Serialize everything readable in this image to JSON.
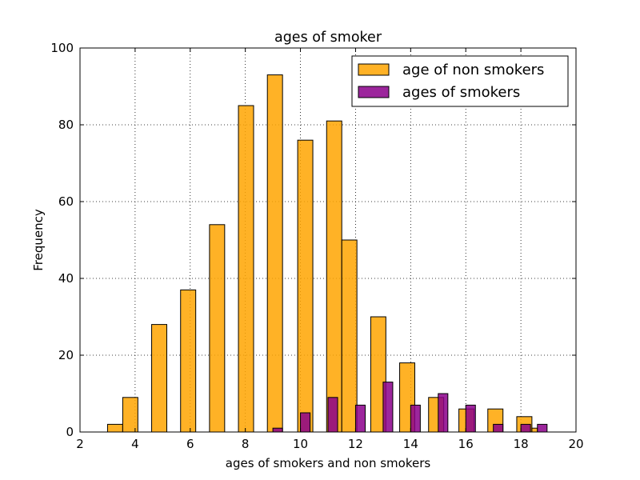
{
  "chart_data": {
    "type": "bar",
    "title": "ages of smoker",
    "xlabel": "ages of smokers and non smokers",
    "ylabel": "Frequency",
    "xlim": [
      2,
      20
    ],
    "ylim": [
      0,
      100
    ],
    "xticks": [
      2,
      4,
      6,
      8,
      10,
      12,
      14,
      16,
      18,
      20
    ],
    "yticks": [
      0,
      20,
      40,
      60,
      80,
      100
    ],
    "grid": true,
    "legend_position": "top-right",
    "series": [
      {
        "name": "age of non smokers",
        "color": "#ffa500",
        "bars": [
          {
            "x0": 3.0,
            "x1": 3.55,
            "value": 2
          },
          {
            "x0": 3.55,
            "x1": 4.1,
            "value": 9
          },
          {
            "x0": 4.6,
            "x1": 5.15,
            "value": 28
          },
          {
            "x0": 5.65,
            "x1": 6.2,
            "value": 37
          },
          {
            "x0": 6.7,
            "x1": 7.25,
            "value": 54
          },
          {
            "x0": 7.75,
            "x1": 8.3,
            "value": 85
          },
          {
            "x0": 8.8,
            "x1": 9.35,
            "value": 93
          },
          {
            "x0": 9.9,
            "x1": 10.45,
            "value": 76
          },
          {
            "x0": 10.95,
            "x1": 11.5,
            "value": 81
          },
          {
            "x0": 11.5,
            "x1": 12.05,
            "value": 50
          },
          {
            "x0": 12.55,
            "x1": 13.1,
            "value": 30
          },
          {
            "x0": 13.6,
            "x1": 14.15,
            "value": 18
          },
          {
            "x0": 14.65,
            "x1": 15.2,
            "value": 9
          },
          {
            "x0": 15.75,
            "x1": 16.3,
            "value": 6
          },
          {
            "x0": 16.8,
            "x1": 17.35,
            "value": 6
          },
          {
            "x0": 17.85,
            "x1": 18.4,
            "value": 4
          },
          {
            "x0": 18.4,
            "x1": 18.6,
            "value": 1
          }
        ]
      },
      {
        "name": "ages of smokers",
        "color": "#8b008b",
        "bars": [
          {
            "x0": 9.0,
            "x1": 9.35,
            "value": 1
          },
          {
            "x0": 10.0,
            "x1": 10.35,
            "value": 5
          },
          {
            "x0": 11.0,
            "x1": 11.35,
            "value": 9
          },
          {
            "x0": 12.0,
            "x1": 12.35,
            "value": 7
          },
          {
            "x0": 13.0,
            "x1": 13.35,
            "value": 13
          },
          {
            "x0": 14.0,
            "x1": 14.35,
            "value": 7
          },
          {
            "x0": 15.0,
            "x1": 15.35,
            "value": 10
          },
          {
            "x0": 16.0,
            "x1": 16.35,
            "value": 7
          },
          {
            "x0": 17.0,
            "x1": 17.35,
            "value": 2
          },
          {
            "x0": 18.0,
            "x1": 18.35,
            "value": 2
          },
          {
            "x0": 18.6,
            "x1": 18.95,
            "value": 2
          }
        ]
      }
    ]
  }
}
